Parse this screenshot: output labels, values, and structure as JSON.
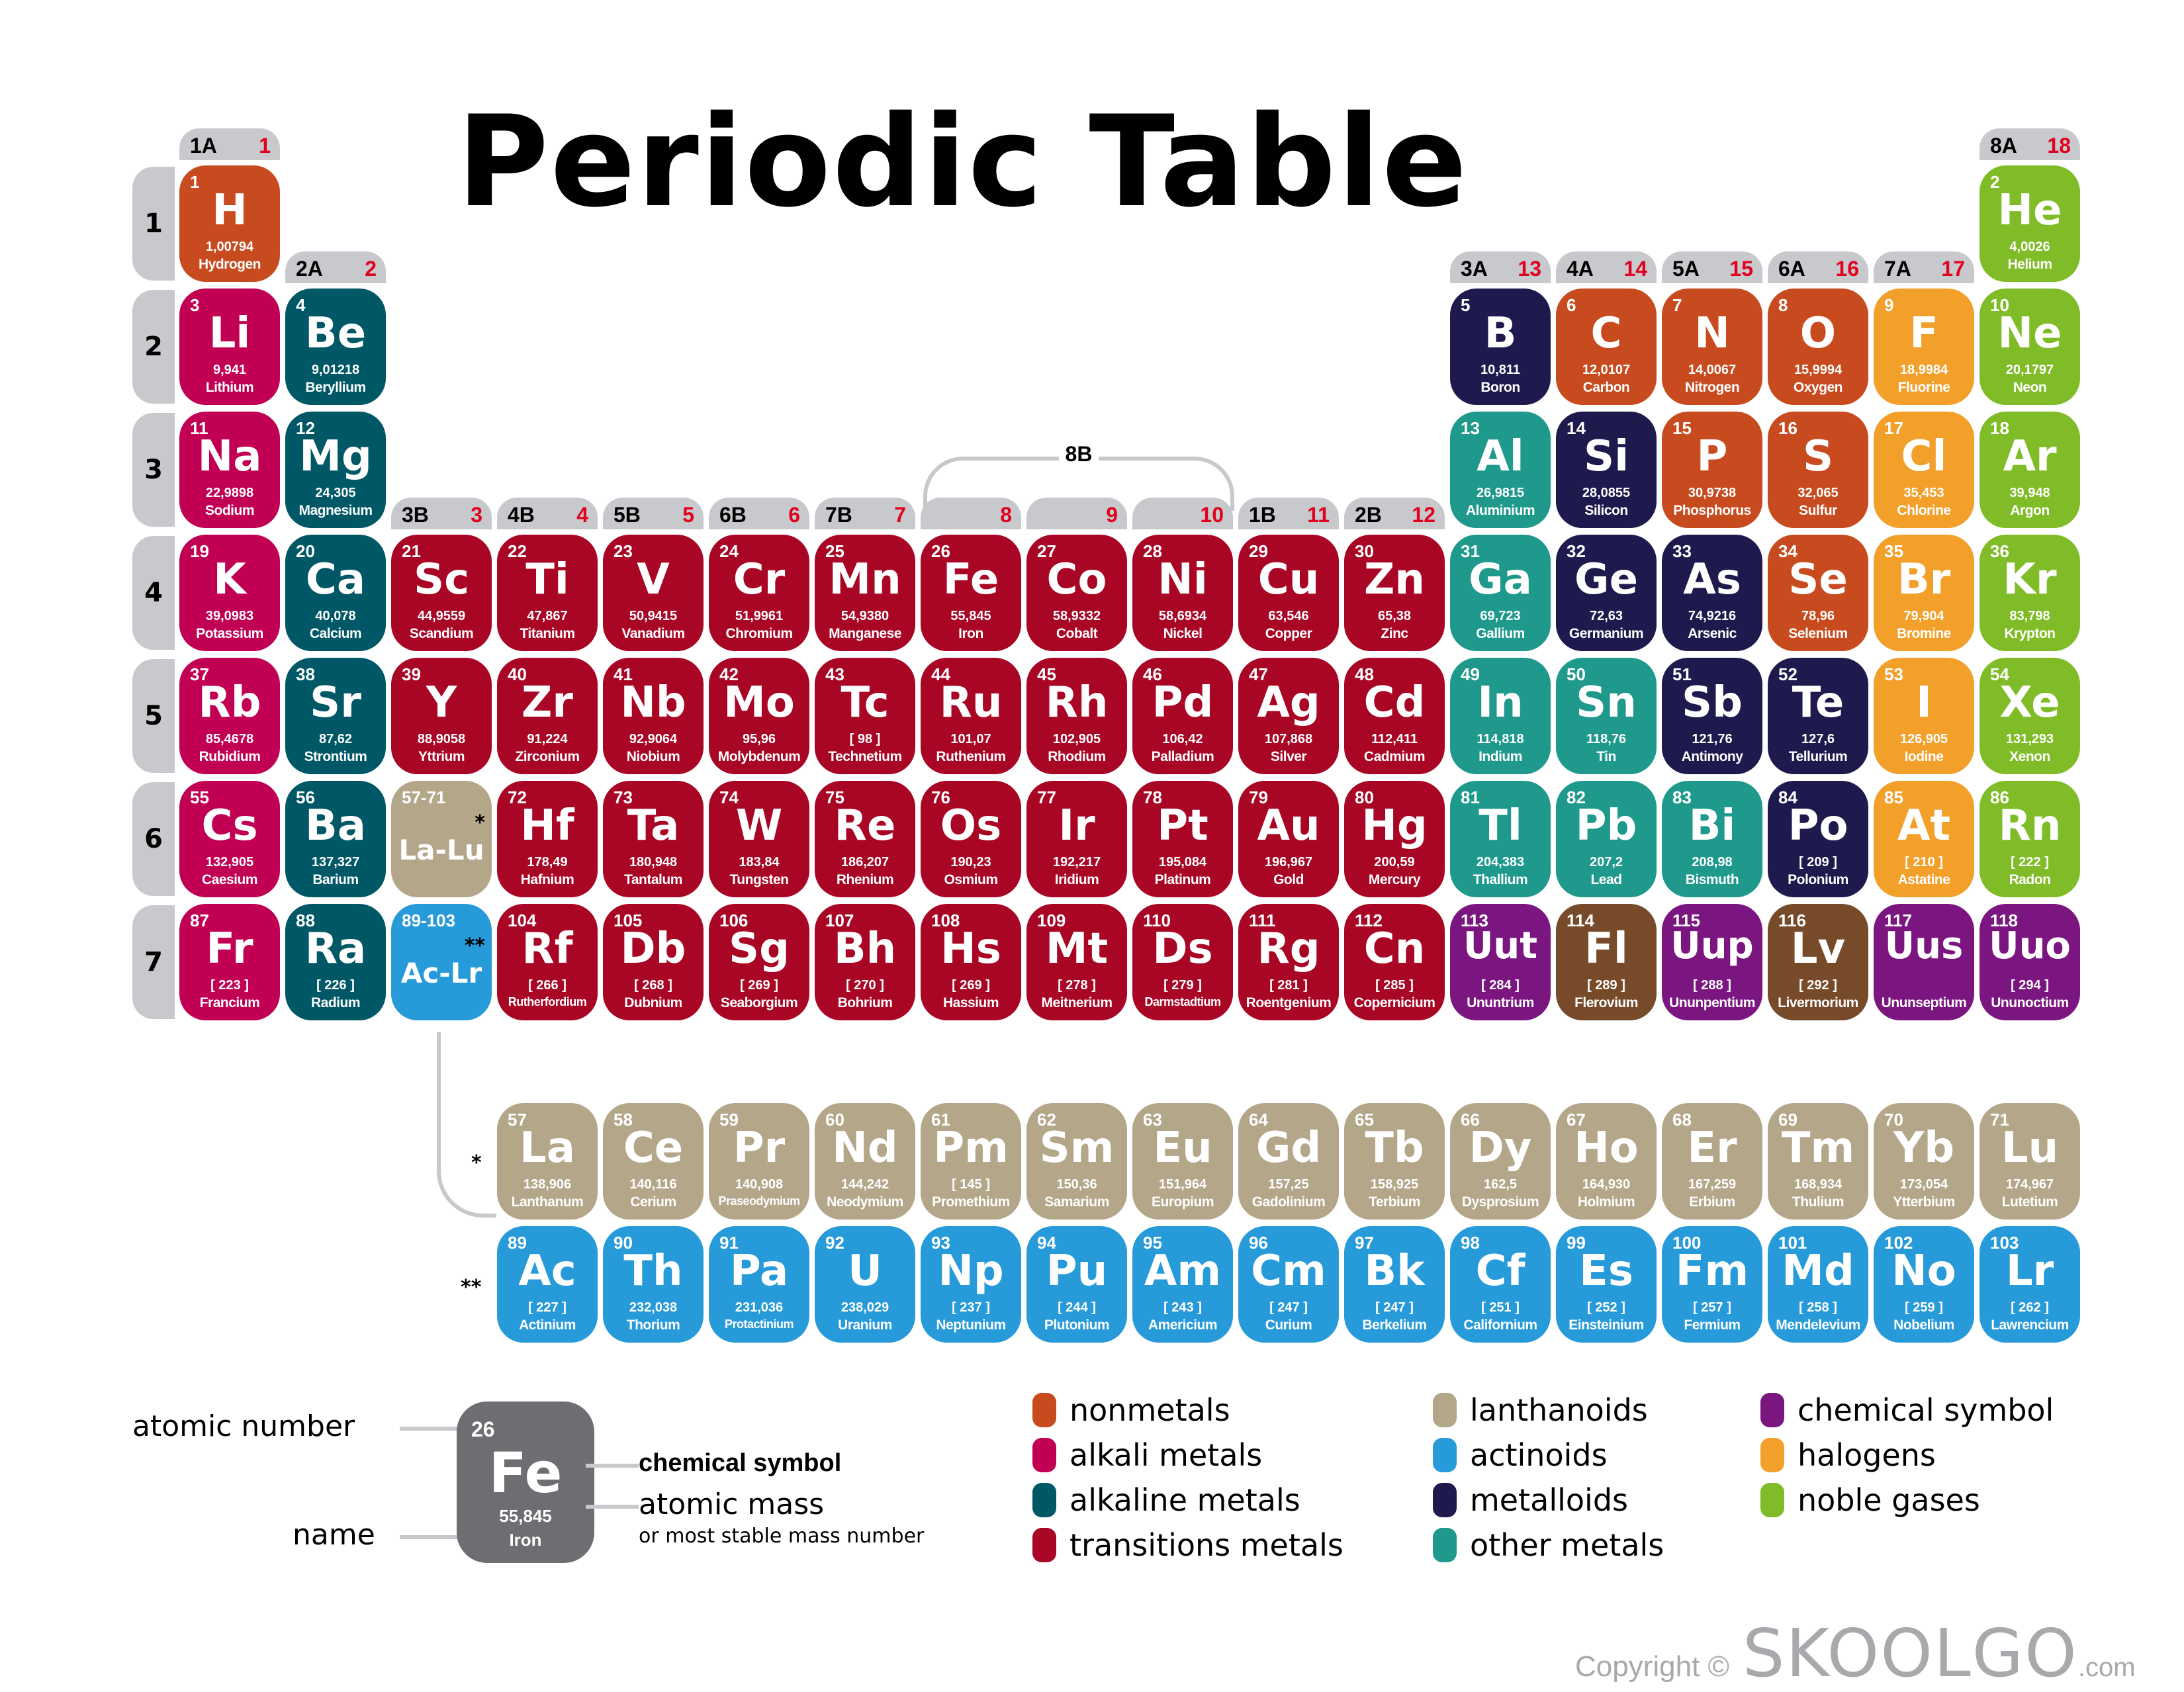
{
  "title": "Periodic Table",
  "colors": {
    "nonmetals": "#c84b1f",
    "alkali": "#c10054",
    "alkaline": "#005866",
    "transition": "#a90524",
    "lanthanoids": "#b3a689",
    "actinoids": "#279ad9",
    "metalloids": "#1f1a4e",
    "other": "#1e998c",
    "unknown": "#7b1680",
    "halogens": "#f3a02b",
    "noble": "#7fbc27",
    "brown": "#774a2a",
    "header": "#c8c9cc",
    "group_number": "#e1001e"
  },
  "periods": [
    "1",
    "2",
    "3",
    "4",
    "5",
    "6",
    "7"
  ],
  "groups": [
    {
      "col": 1,
      "a": "1A",
      "n": "1",
      "row": 1
    },
    {
      "col": 2,
      "a": "2A",
      "n": "2",
      "row": 2
    },
    {
      "col": 3,
      "a": "3B",
      "n": "3",
      "row": 4
    },
    {
      "col": 4,
      "a": "4B",
      "n": "4",
      "row": 4
    },
    {
      "col": 5,
      "a": "5B",
      "n": "5",
      "row": 4
    },
    {
      "col": 6,
      "a": "6B",
      "n": "6",
      "row": 4
    },
    {
      "col": 7,
      "a": "7B",
      "n": "7",
      "row": 4
    },
    {
      "col": 8,
      "a": "",
      "n": "8",
      "row": 4
    },
    {
      "col": 9,
      "a": "",
      "n": "9",
      "row": 4
    },
    {
      "col": 10,
      "a": "",
      "n": "10",
      "row": 4
    },
    {
      "col": 11,
      "a": "1B",
      "n": "11",
      "row": 4
    },
    {
      "col": 12,
      "a": "2B",
      "n": "12",
      "row": 4
    },
    {
      "col": 13,
      "a": "3A",
      "n": "13",
      "row": 2
    },
    {
      "col": 14,
      "a": "4A",
      "n": "14",
      "row": 2
    },
    {
      "col": 15,
      "a": "5A",
      "n": "15",
      "row": 2
    },
    {
      "col": 16,
      "a": "6A",
      "n": "16",
      "row": 2
    },
    {
      "col": 17,
      "a": "7A",
      "n": "17",
      "row": 2
    },
    {
      "col": 18,
      "a": "8A",
      "n": "18",
      "row": 1
    }
  ],
  "group_8b_label": "8B",
  "elements": [
    {
      "n": "1",
      "s": "H",
      "m": "1,00794",
      "name": "Hydrogen",
      "r": 1,
      "c": 1,
      "cat": "nonmetals"
    },
    {
      "n": "2",
      "s": "He",
      "m": "4,0026",
      "name": "Helium",
      "r": 1,
      "c": 18,
      "cat": "noble"
    },
    {
      "n": "3",
      "s": "Li",
      "m": "9,941",
      "name": "Lithium",
      "r": 2,
      "c": 1,
      "cat": "alkali"
    },
    {
      "n": "4",
      "s": "Be",
      "m": "9,01218",
      "name": "Beryllium",
      "r": 2,
      "c": 2,
      "cat": "alkaline"
    },
    {
      "n": "5",
      "s": "B",
      "m": "10,811",
      "name": "Boron",
      "r": 2,
      "c": 13,
      "cat": "metalloids"
    },
    {
      "n": "6",
      "s": "C",
      "m": "12,0107",
      "name": "Carbon",
      "r": 2,
      "c": 14,
      "cat": "nonmetals"
    },
    {
      "n": "7",
      "s": "N",
      "m": "14,0067",
      "name": "Nitrogen",
      "r": 2,
      "c": 15,
      "cat": "nonmetals"
    },
    {
      "n": "8",
      "s": "O",
      "m": "15,9994",
      "name": "Oxygen",
      "r": 2,
      "c": 16,
      "cat": "nonmetals"
    },
    {
      "n": "9",
      "s": "F",
      "m": "18,9984",
      "name": "Fluorine",
      "r": 2,
      "c": 17,
      "cat": "halogens"
    },
    {
      "n": "10",
      "s": "Ne",
      "m": "20,1797",
      "name": "Neon",
      "r": 2,
      "c": 18,
      "cat": "noble"
    },
    {
      "n": "11",
      "s": "Na",
      "m": "22,9898",
      "name": "Sodium",
      "r": 3,
      "c": 1,
      "cat": "alkali"
    },
    {
      "n": "12",
      "s": "Mg",
      "m": "24,305",
      "name": "Magnesium",
      "r": 3,
      "c": 2,
      "cat": "alkaline"
    },
    {
      "n": "13",
      "s": "Al",
      "m": "26,9815",
      "name": "Aluminium",
      "r": 3,
      "c": 13,
      "cat": "other"
    },
    {
      "n": "14",
      "s": "Si",
      "m": "28,0855",
      "name": "Silicon",
      "r": 3,
      "c": 14,
      "cat": "metalloids"
    },
    {
      "n": "15",
      "s": "P",
      "m": "30,9738",
      "name": "Phosphorus",
      "r": 3,
      "c": 15,
      "cat": "nonmetals"
    },
    {
      "n": "16",
      "s": "S",
      "m": "32,065",
      "name": "Sulfur",
      "r": 3,
      "c": 16,
      "cat": "nonmetals"
    },
    {
      "n": "17",
      "s": "Cl",
      "m": "35,453",
      "name": "Chlorine",
      "r": 3,
      "c": 17,
      "cat": "halogens"
    },
    {
      "n": "18",
      "s": "Ar",
      "m": "39,948",
      "name": "Argon",
      "r": 3,
      "c": 18,
      "cat": "noble"
    },
    {
      "n": "19",
      "s": "K",
      "m": "39,0983",
      "name": "Potassium",
      "r": 4,
      "c": 1,
      "cat": "alkali"
    },
    {
      "n": "20",
      "s": "Ca",
      "m": "40,078",
      "name": "Calcium",
      "r": 4,
      "c": 2,
      "cat": "alkaline"
    },
    {
      "n": "21",
      "s": "Sc",
      "m": "44,9559",
      "name": "Scandium",
      "r": 4,
      "c": 3,
      "cat": "transition"
    },
    {
      "n": "22",
      "s": "Ti",
      "m": "47,867",
      "name": "Titanium",
      "r": 4,
      "c": 4,
      "cat": "transition"
    },
    {
      "n": "23",
      "s": "V",
      "m": "50,9415",
      "name": "Vanadium",
      "r": 4,
      "c": 5,
      "cat": "transition"
    },
    {
      "n": "24",
      "s": "Cr",
      "m": "51,9961",
      "name": "Chromium",
      "r": 4,
      "c": 6,
      "cat": "transition"
    },
    {
      "n": "25",
      "s": "Mn",
      "m": "54,9380",
      "name": "Manganese",
      "r": 4,
      "c": 7,
      "cat": "transition"
    },
    {
      "n": "26",
      "s": "Fe",
      "m": "55,845",
      "name": "Iron",
      "r": 4,
      "c": 8,
      "cat": "transition"
    },
    {
      "n": "27",
      "s": "Co",
      "m": "58,9332",
      "name": "Cobalt",
      "r": 4,
      "c": 9,
      "cat": "transition"
    },
    {
      "n": "28",
      "s": "Ni",
      "m": "58,6934",
      "name": "Nickel",
      "r": 4,
      "c": 10,
      "cat": "transition"
    },
    {
      "n": "29",
      "s": "Cu",
      "m": "63,546",
      "name": "Copper",
      "r": 4,
      "c": 11,
      "cat": "transition"
    },
    {
      "n": "30",
      "s": "Zn",
      "m": "65,38",
      "name": "Zinc",
      "r": 4,
      "c": 12,
      "cat": "transition"
    },
    {
      "n": "31",
      "s": "Ga",
      "m": "69,723",
      "name": "Gallium",
      "r": 4,
      "c": 13,
      "cat": "other"
    },
    {
      "n": "32",
      "s": "Ge",
      "m": "72,63",
      "name": "Germanium",
      "r": 4,
      "c": 14,
      "cat": "metalloids"
    },
    {
      "n": "33",
      "s": "As",
      "m": "74,9216",
      "name": "Arsenic",
      "r": 4,
      "c": 15,
      "cat": "metalloids"
    },
    {
      "n": "34",
      "s": "Se",
      "m": "78,96",
      "name": "Selenium",
      "r": 4,
      "c": 16,
      "cat": "nonmetals"
    },
    {
      "n": "35",
      "s": "Br",
      "m": "79,904",
      "name": "Bromine",
      "r": 4,
      "c": 17,
      "cat": "halogens"
    },
    {
      "n": "36",
      "s": "Kr",
      "m": "83,798",
      "name": "Krypton",
      "r": 4,
      "c": 18,
      "cat": "noble"
    },
    {
      "n": "37",
      "s": "Rb",
      "m": "85,4678",
      "name": "Rubidium",
      "r": 5,
      "c": 1,
      "cat": "alkali"
    },
    {
      "n": "38",
      "s": "Sr",
      "m": "87,62",
      "name": "Strontium",
      "r": 5,
      "c": 2,
      "cat": "alkaline"
    },
    {
      "n": "39",
      "s": "Y",
      "m": "88,9058",
      "name": "Yttrium",
      "r": 5,
      "c": 3,
      "cat": "transition"
    },
    {
      "n": "40",
      "s": "Zr",
      "m": "91,224",
      "name": "Zirconium",
      "r": 5,
      "c": 4,
      "cat": "transition"
    },
    {
      "n": "41",
      "s": "Nb",
      "m": "92,9064",
      "name": "Niobium",
      "r": 5,
      "c": 5,
      "cat": "transition"
    },
    {
      "n": "42",
      "s": "Mo",
      "m": "95,96",
      "name": "Molybdenum",
      "r": 5,
      "c": 6,
      "cat": "transition"
    },
    {
      "n": "43",
      "s": "Tc",
      "m": "[ 98 ]",
      "name": "Technetium",
      "r": 5,
      "c": 7,
      "cat": "transition"
    },
    {
      "n": "44",
      "s": "Ru",
      "m": "101,07",
      "name": "Ruthenium",
      "r": 5,
      "c": 8,
      "cat": "transition"
    },
    {
      "n": "45",
      "s": "Rh",
      "m": "102,905",
      "name": "Rhodium",
      "r": 5,
      "c": 9,
      "cat": "transition"
    },
    {
      "n": "46",
      "s": "Pd",
      "m": "106,42",
      "name": "Palladium",
      "r": 5,
      "c": 10,
      "cat": "transition"
    },
    {
      "n": "47",
      "s": "Ag",
      "m": "107,868",
      "name": "Silver",
      "r": 5,
      "c": 11,
      "cat": "transition"
    },
    {
      "n": "48",
      "s": "Cd",
      "m": "112,411",
      "name": "Cadmium",
      "r": 5,
      "c": 12,
      "cat": "transition"
    },
    {
      "n": "49",
      "s": "In",
      "m": "114,818",
      "name": "Indium",
      "r": 5,
      "c": 13,
      "cat": "other"
    },
    {
      "n": "50",
      "s": "Sn",
      "m": "118,76",
      "name": "Tin",
      "r": 5,
      "c": 14,
      "cat": "other"
    },
    {
      "n": "51",
      "s": "Sb",
      "m": "121,76",
      "name": "Antimony",
      "r": 5,
      "c": 15,
      "cat": "metalloids"
    },
    {
      "n": "52",
      "s": "Te",
      "m": "127,6",
      "name": "Tellurium",
      "r": 5,
      "c": 16,
      "cat": "metalloids"
    },
    {
      "n": "53",
      "s": "I",
      "m": "126,905",
      "name": "Iodine",
      "r": 5,
      "c": 17,
      "cat": "halogens"
    },
    {
      "n": "54",
      "s": "Xe",
      "m": "131,293",
      "name": "Xenon",
      "r": 5,
      "c": 18,
      "cat": "noble"
    },
    {
      "n": "55",
      "s": "Cs",
      "m": "132,905",
      "name": "Caesium",
      "r": 6,
      "c": 1,
      "cat": "alkali"
    },
    {
      "n": "56",
      "s": "Ba",
      "m": "137,327",
      "name": "Barium",
      "r": 6,
      "c": 2,
      "cat": "alkaline"
    },
    {
      "n": "72",
      "s": "Hf",
      "m": "178,49",
      "name": "Hafnium",
      "r": 6,
      "c": 4,
      "cat": "transition"
    },
    {
      "n": "73",
      "s": "Ta",
      "m": "180,948",
      "name": "Tantalum",
      "r": 6,
      "c": 5,
      "cat": "transition"
    },
    {
      "n": "74",
      "s": "W",
      "m": "183,84",
      "name": "Tungsten",
      "r": 6,
      "c": 6,
      "cat": "transition"
    },
    {
      "n": "75",
      "s": "Re",
      "m": "186,207",
      "name": "Rhenium",
      "r": 6,
      "c": 7,
      "cat": "transition"
    },
    {
      "n": "76",
      "s": "Os",
      "m": "190,23",
      "name": "Osmium",
      "r": 6,
      "c": 8,
      "cat": "transition"
    },
    {
      "n": "77",
      "s": "Ir",
      "m": "192,217",
      "name": "Iridium",
      "r": 6,
      "c": 9,
      "cat": "transition"
    },
    {
      "n": "78",
      "s": "Pt",
      "m": "195,084",
      "name": "Platinum",
      "r": 6,
      "c": 10,
      "cat": "transition"
    },
    {
      "n": "79",
      "s": "Au",
      "m": "196,967",
      "name": "Gold",
      "r": 6,
      "c": 11,
      "cat": "transition"
    },
    {
      "n": "80",
      "s": "Hg",
      "m": "200,59",
      "name": "Mercury",
      "r": 6,
      "c": 12,
      "cat": "transition"
    },
    {
      "n": "81",
      "s": "Tl",
      "m": "204,383",
      "name": "Thallium",
      "r": 6,
      "c": 13,
      "cat": "other"
    },
    {
      "n": "82",
      "s": "Pb",
      "m": "207,2",
      "name": "Lead",
      "r": 6,
      "c": 14,
      "cat": "other"
    },
    {
      "n": "83",
      "s": "Bi",
      "m": "208,98",
      "name": "Bismuth",
      "r": 6,
      "c": 15,
      "cat": "other"
    },
    {
      "n": "84",
      "s": "Po",
      "m": "[ 209 ]",
      "name": "Polonium",
      "r": 6,
      "c": 16,
      "cat": "metalloids"
    },
    {
      "n": "85",
      "s": "At",
      "m": "[ 210 ]",
      "name": "Astatine",
      "r": 6,
      "c": 17,
      "cat": "halogens"
    },
    {
      "n": "86",
      "s": "Rn",
      "m": "[ 222 ]",
      "name": "Radon",
      "r": 6,
      "c": 18,
      "cat": "noble"
    },
    {
      "n": "87",
      "s": "Fr",
      "m": "[ 223 ]",
      "name": "Francium",
      "r": 7,
      "c": 1,
      "cat": "alkali"
    },
    {
      "n": "88",
      "s": "Ra",
      "m": "[ 226 ]",
      "name": "Radium",
      "r": 7,
      "c": 2,
      "cat": "alkaline"
    },
    {
      "n": "104",
      "s": "Rf",
      "m": "[ 266 ]",
      "name": "Rutherfordium",
      "r": 7,
      "c": 4,
      "cat": "transition"
    },
    {
      "n": "105",
      "s": "Db",
      "m": "[ 268 ]",
      "name": "Dubnium",
      "r": 7,
      "c": 5,
      "cat": "transition"
    },
    {
      "n": "106",
      "s": "Sg",
      "m": "[ 269 ]",
      "name": "Seaborgium",
      "r": 7,
      "c": 6,
      "cat": "transition"
    },
    {
      "n": "107",
      "s": "Bh",
      "m": "[ 270 ]",
      "name": "Bohrium",
      "r": 7,
      "c": 7,
      "cat": "transition"
    },
    {
      "n": "108",
      "s": "Hs",
      "m": "[ 269 ]",
      "name": "Hassium",
      "r": 7,
      "c": 8,
      "cat": "transition"
    },
    {
      "n": "109",
      "s": "Mt",
      "m": "[ 278 ]",
      "name": "Meitnerium",
      "r": 7,
      "c": 9,
      "cat": "transition"
    },
    {
      "n": "110",
      "s": "Ds",
      "m": "[ 279 ]",
      "name": "Darmstadtium",
      "r": 7,
      "c": 10,
      "cat": "transition"
    },
    {
      "n": "111",
      "s": "Rg",
      "m": "[ 281 ]",
      "name": "Roentgenium",
      "r": 7,
      "c": 11,
      "cat": "transition"
    },
    {
      "n": "112",
      "s": "Cn",
      "m": "[ 285 ]",
      "name": "Copernicium",
      "r": 7,
      "c": 12,
      "cat": "transition"
    },
    {
      "n": "113",
      "s": "Uut",
      "m": "[ 284 ]",
      "name": "Ununtrium",
      "r": 7,
      "c": 13,
      "cat": "unknown"
    },
    {
      "n": "114",
      "s": "Fl",
      "m": "[ 289 ]",
      "name": "Flerovium",
      "r": 7,
      "c": 14,
      "cat": "brown"
    },
    {
      "n": "115",
      "s": "Uup",
      "m": "[ 288 ]",
      "name": "Ununpentium",
      "r": 7,
      "c": 15,
      "cat": "unknown"
    },
    {
      "n": "116",
      "s": "Lv",
      "m": "[ 292 ]",
      "name": "Livermorium",
      "r": 7,
      "c": 16,
      "cat": "brown"
    },
    {
      "n": "117",
      "s": "Uus",
      "m": "",
      "name": "Ununseptium",
      "r": 7,
      "c": 17,
      "cat": "unknown"
    },
    {
      "n": "118",
      "s": "Uuo",
      "m": "[ 294 ]",
      "name": "Ununoctium",
      "r": 7,
      "c": 18,
      "cat": "unknown"
    }
  ],
  "placeholders": [
    {
      "range": "57-71",
      "s": "La-Lu",
      "star": "*",
      "r": 6,
      "c": 3,
      "cat": "lanthanoids"
    },
    {
      "range": "89-103",
      "s": "Ac-Lr",
      "star": "**",
      "r": 7,
      "c": 3,
      "cat": "actinoids"
    }
  ],
  "lanthanides_star": "*",
  "actinides_star": "**",
  "lanthanides": [
    {
      "n": "57",
      "s": "La",
      "m": "138,906",
      "name": "Lanthanum"
    },
    {
      "n": "58",
      "s": "Ce",
      "m": "140,116",
      "name": "Cerium"
    },
    {
      "n": "59",
      "s": "Pr",
      "m": "140,908",
      "name": "Praseodymium"
    },
    {
      "n": "60",
      "s": "Nd",
      "m": "144,242",
      "name": "Neodymium"
    },
    {
      "n": "61",
      "s": "Pm",
      "m": "[ 145 ]",
      "name": "Promethium"
    },
    {
      "n": "62",
      "s": "Sm",
      "m": "150,36",
      "name": "Samarium"
    },
    {
      "n": "63",
      "s": "Eu",
      "m": "151,964",
      "name": "Europium"
    },
    {
      "n": "64",
      "s": "Gd",
      "m": "157,25",
      "name": "Gadolinium"
    },
    {
      "n": "65",
      "s": "Tb",
      "m": "158,925",
      "name": "Terbium"
    },
    {
      "n": "66",
      "s": "Dy",
      "m": "162,5",
      "name": "Dysprosium"
    },
    {
      "n": "67",
      "s": "Ho",
      "m": "164,930",
      "name": "Holmium"
    },
    {
      "n": "68",
      "s": "Er",
      "m": "167,259",
      "name": "Erbium"
    },
    {
      "n": "69",
      "s": "Tm",
      "m": "168,934",
      "name": "Thulium"
    },
    {
      "n": "70",
      "s": "Yb",
      "m": "173,054",
      "name": "Ytterbium"
    },
    {
      "n": "71",
      "s": "Lu",
      "m": "174,967",
      "name": "Lutetium"
    }
  ],
  "actinides": [
    {
      "n": "89",
      "s": "Ac",
      "m": "[ 227 ]",
      "name": "Actinium"
    },
    {
      "n": "90",
      "s": "Th",
      "m": "232,038",
      "name": "Thorium"
    },
    {
      "n": "91",
      "s": "Pa",
      "m": "231,036",
      "name": "Protactinium"
    },
    {
      "n": "92",
      "s": "U",
      "m": "238,029",
      "name": "Uranium"
    },
    {
      "n": "93",
      "s": "Np",
      "m": "[ 237 ]",
      "name": "Neptunium"
    },
    {
      "n": "94",
      "s": "Pu",
      "m": "[ 244 ]",
      "name": "Plutonium"
    },
    {
      "n": "95",
      "s": "Am",
      "m": "[ 243 ]",
      "name": "Americium"
    },
    {
      "n": "96",
      "s": "Cm",
      "m": "[ 247 ]",
      "name": "Curium"
    },
    {
      "n": "97",
      "s": "Bk",
      "m": "[ 247 ]",
      "name": "Berkelium"
    },
    {
      "n": "98",
      "s": "Cf",
      "m": "[ 251 ]",
      "name": "Californium"
    },
    {
      "n": "99",
      "s": "Es",
      "m": "[ 252 ]",
      "name": "Einsteinium"
    },
    {
      "n": "100",
      "s": "Fm",
      "m": "[ 257 ]",
      "name": "Fermium"
    },
    {
      "n": "101",
      "s": "Md",
      "m": "[ 258 ]",
      "name": "Mendelevium"
    },
    {
      "n": "102",
      "s": "No",
      "m": "[ 259 ]",
      "name": "Nobelium"
    },
    {
      "n": "103",
      "s": "Lr",
      "m": "[ 262 ]",
      "name": "Lawrencium"
    }
  ],
  "key": {
    "example": {
      "n": "26",
      "s": "Fe",
      "m": "55,845",
      "name": "Iron"
    },
    "atomic_number_label": "atomic number",
    "name_label": "name",
    "symbol_label": "chemical symbol",
    "mass_label": "atomic mass",
    "mass_sublabel": "or most stable mass number"
  },
  "legend": [
    {
      "label": "nonmetals",
      "cat": "nonmetals",
      "col": 0,
      "row": 0
    },
    {
      "label": "alkali metals",
      "cat": "alkali",
      "col": 0,
      "row": 1
    },
    {
      "label": "alkaline metals",
      "cat": "alkaline",
      "col": 0,
      "row": 2
    },
    {
      "label": "transitions metals",
      "cat": "transition",
      "col": 0,
      "row": 3
    },
    {
      "label": "lanthanoids",
      "cat": "lanthanoids",
      "col": 1,
      "row": 0
    },
    {
      "label": "actinoids",
      "cat": "actinoids",
      "col": 1,
      "row": 1
    },
    {
      "label": "metalloids",
      "cat": "metalloids",
      "col": 1,
      "row": 2
    },
    {
      "label": "other metals",
      "cat": "other",
      "col": 1,
      "row": 3
    },
    {
      "label": "chemical symbol",
      "cat": "unknown",
      "col": 2,
      "row": 0
    },
    {
      "label": "halogens",
      "cat": "halogens",
      "col": 2,
      "row": 1
    },
    {
      "label": "noble gases",
      "cat": "noble",
      "col": 2,
      "row": 2
    }
  ],
  "copyright": {
    "prefix": "Copyright ©",
    "brand": "SKOOLGO",
    "domain": ".com"
  }
}
